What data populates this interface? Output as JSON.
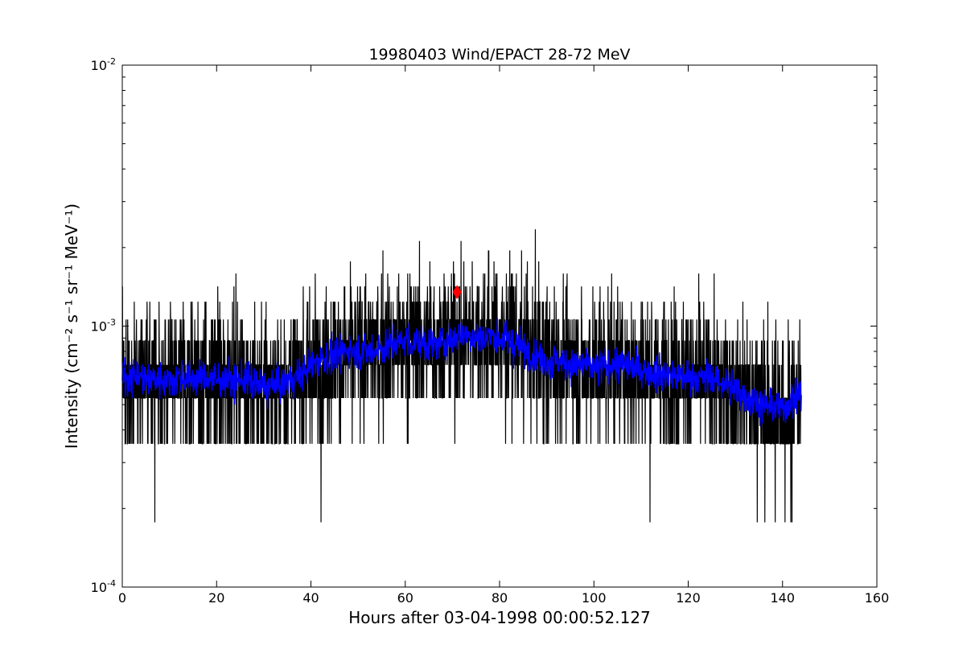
{
  "chart_data": {
    "type": "line",
    "title": "19980403 Wind/EPACT 28-72 MeV",
    "xlabel": "Hours after 03-04-1998 00:00:52.127",
    "ylabel": "Intensity (cm⁻² s⁻¹ sr⁻¹ MeV⁻¹)",
    "xlim": [
      0,
      160
    ],
    "ylim": [
      0.0001,
      0.01
    ],
    "yscale": "log",
    "grid": false,
    "x_ticks": [
      0,
      20,
      40,
      60,
      80,
      100,
      120,
      140,
      160
    ],
    "x_tick_labels": [
      "0",
      "20",
      "40",
      "60",
      "80",
      "100",
      "120",
      "140",
      "160"
    ],
    "y_ticks": [
      0.0001,
      0.001,
      0.01
    ],
    "y_tick_labels": [
      {
        "base": "10",
        "exp": "-4"
      },
      {
        "base": "10",
        "exp": "-3"
      },
      {
        "base": "10",
        "exp": "-2"
      }
    ],
    "series": [
      {
        "color": "#000000",
        "x_range": [
          0,
          144
        ],
        "levels": [
          0.000177,
          0.000354,
          0.00053,
          0.00071,
          0.00088,
          0.00106,
          0.00124,
          0.00142,
          0.00159,
          0.00177,
          0.00195,
          0.00212,
          0.00235
        ],
        "x": [
          0,
          5,
          10,
          15,
          20,
          25,
          30,
          35,
          40,
          45,
          50,
          55,
          60,
          65,
          70,
          75,
          80,
          85,
          90,
          95,
          100,
          105,
          110,
          115,
          120,
          125,
          130,
          135,
          140,
          144
        ],
        "y": [
          0.00062,
          0.00064,
          0.00062,
          0.00063,
          0.00062,
          0.00062,
          0.00058,
          0.0006,
          0.00068,
          0.00074,
          0.0008,
          0.00084,
          0.00087,
          0.00086,
          0.0009,
          0.00092,
          0.0009,
          0.00082,
          0.00074,
          0.00072,
          0.0007,
          0.0007,
          0.00068,
          0.00065,
          0.00064,
          0.00062,
          0.00055,
          0.00052,
          0.00048,
          0.0005
        ]
      },
      {
        "color": "#0000ff",
        "x": [
          0,
          2,
          4,
          6,
          8,
          10,
          12,
          14,
          16,
          18,
          20,
          22,
          24,
          26,
          28,
          30,
          32,
          34,
          36,
          38,
          40,
          42,
          44,
          46,
          48,
          50,
          52,
          54,
          56,
          58,
          60,
          62,
          64,
          66,
          68,
          70,
          72,
          74,
          76,
          78,
          80,
          82,
          84,
          86,
          88,
          90,
          92,
          94,
          96,
          98,
          100,
          102,
          104,
          106,
          108,
          110,
          112,
          114,
          116,
          118,
          120,
          122,
          124,
          126,
          128,
          130,
          132,
          134,
          136,
          138,
          140,
          142,
          144
        ],
        "y": [
          0.00062,
          0.00065,
          0.00064,
          0.00062,
          0.00063,
          0.00062,
          0.00064,
          0.00063,
          0.00063,
          0.00064,
          0.00062,
          0.00063,
          0.00062,
          0.00063,
          0.0006,
          0.00058,
          0.00059,
          0.0006,
          0.00063,
          0.00066,
          0.0007,
          0.00076,
          0.00076,
          0.00078,
          0.00082,
          0.0008,
          0.0008,
          0.00082,
          0.00084,
          0.00086,
          0.00088,
          0.00087,
          0.00086,
          0.00085,
          0.00086,
          0.0009,
          0.00094,
          0.00092,
          0.0009,
          0.00092,
          0.0009,
          0.00088,
          0.00084,
          0.0008,
          0.00077,
          0.00073,
          0.00074,
          0.00072,
          0.00071,
          0.00071,
          0.00069,
          0.0007,
          0.00072,
          0.00071,
          0.00069,
          0.00068,
          0.00067,
          0.00066,
          0.00065,
          0.00064,
          0.00064,
          0.00063,
          0.00063,
          0.00062,
          0.0006,
          0.00058,
          0.00054,
          0.00052,
          0.0005,
          0.00049,
          0.00048,
          0.00052,
          0.00056
        ]
      }
    ],
    "marker": {
      "x": 71,
      "y": 0.00135,
      "shape": "diamond",
      "color": "#ff0000"
    }
  }
}
